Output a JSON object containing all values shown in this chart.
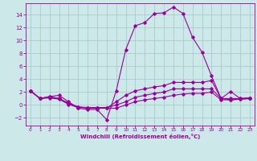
{
  "title": "",
  "xlabel": "Windchill (Refroidissement éolien,°C)",
  "background_color": "#cce8e8",
  "grid_color": "#aacccc",
  "line_color": "#990099",
  "xlim": [
    -0.5,
    23.5
  ],
  "ylim": [
    -3.2,
    15.8
  ],
  "xticks": [
    0,
    1,
    2,
    3,
    4,
    5,
    6,
    7,
    8,
    9,
    10,
    11,
    12,
    13,
    14,
    15,
    16,
    17,
    18,
    19,
    20,
    21,
    22,
    23
  ],
  "yticks": [
    -2,
    0,
    2,
    4,
    6,
    8,
    10,
    12,
    14
  ],
  "series": [
    {
      "x": [
        0,
        1,
        2,
        3,
        4,
        5,
        6,
        7,
        8,
        9,
        10,
        11,
        12,
        13,
        14,
        15,
        16,
        17,
        18,
        19,
        20,
        21,
        22,
        23
      ],
      "y": [
        2.2,
        1.0,
        1.3,
        1.5,
        0.5,
        -0.5,
        -0.7,
        -0.7,
        -2.3,
        2.2,
        8.6,
        12.3,
        12.8,
        14.2,
        14.3,
        15.2,
        14.2,
        10.5,
        8.2,
        4.5,
        1.0,
        2.1,
        1.0,
        1.1
      ]
    },
    {
      "x": [
        0,
        1,
        2,
        3,
        4,
        5,
        6,
        7,
        8,
        9,
        10,
        11,
        12,
        13,
        14,
        15,
        16,
        17,
        18,
        19,
        20,
        21,
        22,
        23
      ],
      "y": [
        2.2,
        1.0,
        1.3,
        1.0,
        0.3,
        -0.3,
        -0.5,
        -0.5,
        -0.5,
        0.5,
        1.5,
        2.2,
        2.5,
        2.8,
        3.0,
        3.5,
        3.5,
        3.5,
        3.5,
        3.8,
        1.0,
        1.0,
        1.0,
        1.1
      ]
    },
    {
      "x": [
        0,
        1,
        2,
        3,
        4,
        5,
        6,
        7,
        8,
        9,
        10,
        11,
        12,
        13,
        14,
        15,
        16,
        17,
        18,
        19,
        20,
        21,
        22,
        23
      ],
      "y": [
        2.2,
        1.0,
        1.2,
        1.0,
        0.2,
        -0.3,
        -0.4,
        -0.4,
        -0.4,
        0.0,
        0.5,
        1.2,
        1.5,
        1.8,
        2.0,
        2.5,
        2.5,
        2.5,
        2.5,
        2.5,
        1.0,
        0.8,
        0.9,
        1.0
      ]
    },
    {
      "x": [
        0,
        1,
        2,
        3,
        4,
        5,
        6,
        7,
        8,
        9,
        10,
        11,
        12,
        13,
        14,
        15,
        16,
        17,
        18,
        19,
        20,
        21,
        22,
        23
      ],
      "y": [
        2.2,
        1.0,
        1.1,
        0.9,
        0.1,
        -0.4,
        -0.4,
        -0.4,
        -0.5,
        -0.5,
        0.0,
        0.5,
        0.8,
        1.0,
        1.2,
        1.5,
        1.7,
        1.8,
        1.8,
        2.0,
        0.8,
        0.8,
        0.9,
        1.0
      ]
    }
  ]
}
